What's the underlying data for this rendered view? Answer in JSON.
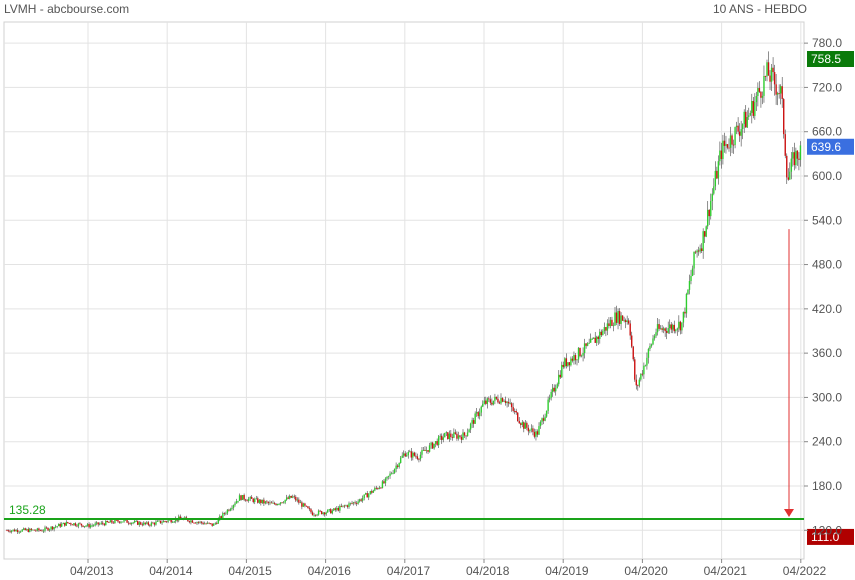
{
  "header": {
    "left": "LVMH - abcbourse.com",
    "right": "10 ANS - HEBDO"
  },
  "colors": {
    "up": "#2ecc2e",
    "down": "#cc1111",
    "grid": "#e3e3e3",
    "support": "#1aa31a",
    "flag_high": "#0a7a0a",
    "flag_last": "#3a6fe0",
    "flag_low": "#b00000",
    "arrow": "#e03030"
  },
  "chart_data": {
    "type": "candlestick",
    "title": "",
    "xlabel": "",
    "ylabel": "",
    "x_ticks": [
      "04/2013",
      "04/2014",
      "04/2015",
      "04/2016",
      "04/2017",
      "04/2018",
      "04/2019",
      "04/2020",
      "04/2021",
      "04/2022"
    ],
    "y_ticks": [
      120.0,
      180.0,
      240.0,
      300.0,
      360.0,
      420.0,
      480.0,
      540.0,
      600.0,
      660.0,
      720.0,
      780.0
    ],
    "ylim": [
      100,
      800
    ],
    "grid": true,
    "support_line": {
      "value": 135.28,
      "label": "135.28"
    },
    "flags": [
      {
        "name": "high",
        "value": 758.5,
        "label": "758.5"
      },
      {
        "name": "last",
        "value": 639.6,
        "label": "639.6"
      },
      {
        "name": "low",
        "value": 111.0,
        "label": "111.0"
      }
    ],
    "arrow": {
      "from": 528,
      "to": 135.28
    },
    "price_path": [
      [
        "2012-09",
        120
      ],
      [
        "2013-01",
        130
      ],
      [
        "2013-04",
        126
      ],
      [
        "2013-09",
        133
      ],
      [
        "2014-01",
        128
      ],
      [
        "2014-06",
        136
      ],
      [
        "2014-11",
        127
      ],
      [
        "2015-03",
        165
      ],
      [
        "2015-08",
        155
      ],
      [
        "2015-11",
        165
      ],
      [
        "2016-02",
        143
      ],
      [
        "2016-05",
        146
      ],
      [
        "2016-09",
        160
      ],
      [
        "2017-01",
        185
      ],
      [
        "2017-04",
        225
      ],
      [
        "2017-06",
        220
      ],
      [
        "2017-10",
        248
      ],
      [
        "2018-01",
        248
      ],
      [
        "2018-04",
        292
      ],
      [
        "2018-07",
        300
      ],
      [
        "2018-10",
        262
      ],
      [
        "2018-12",
        250
      ],
      [
        "2019-04",
        345
      ],
      [
        "2019-08",
        370
      ],
      [
        "2019-12",
        410
      ],
      [
        "2020-02",
        405
      ],
      [
        "2020-03",
        310
      ],
      [
        "2020-06",
        390
      ],
      [
        "2020-10",
        400
      ],
      [
        "2020-12",
        495
      ],
      [
        "2021-01",
        510
      ],
      [
        "2021-04",
        635
      ],
      [
        "2021-08",
        680
      ],
      [
        "2021-11",
        740
      ],
      [
        "2022-01",
        712
      ],
      [
        "2022-02",
        595
      ],
      [
        "2022-03",
        625
      ],
      [
        "2022-05",
        640
      ]
    ]
  }
}
